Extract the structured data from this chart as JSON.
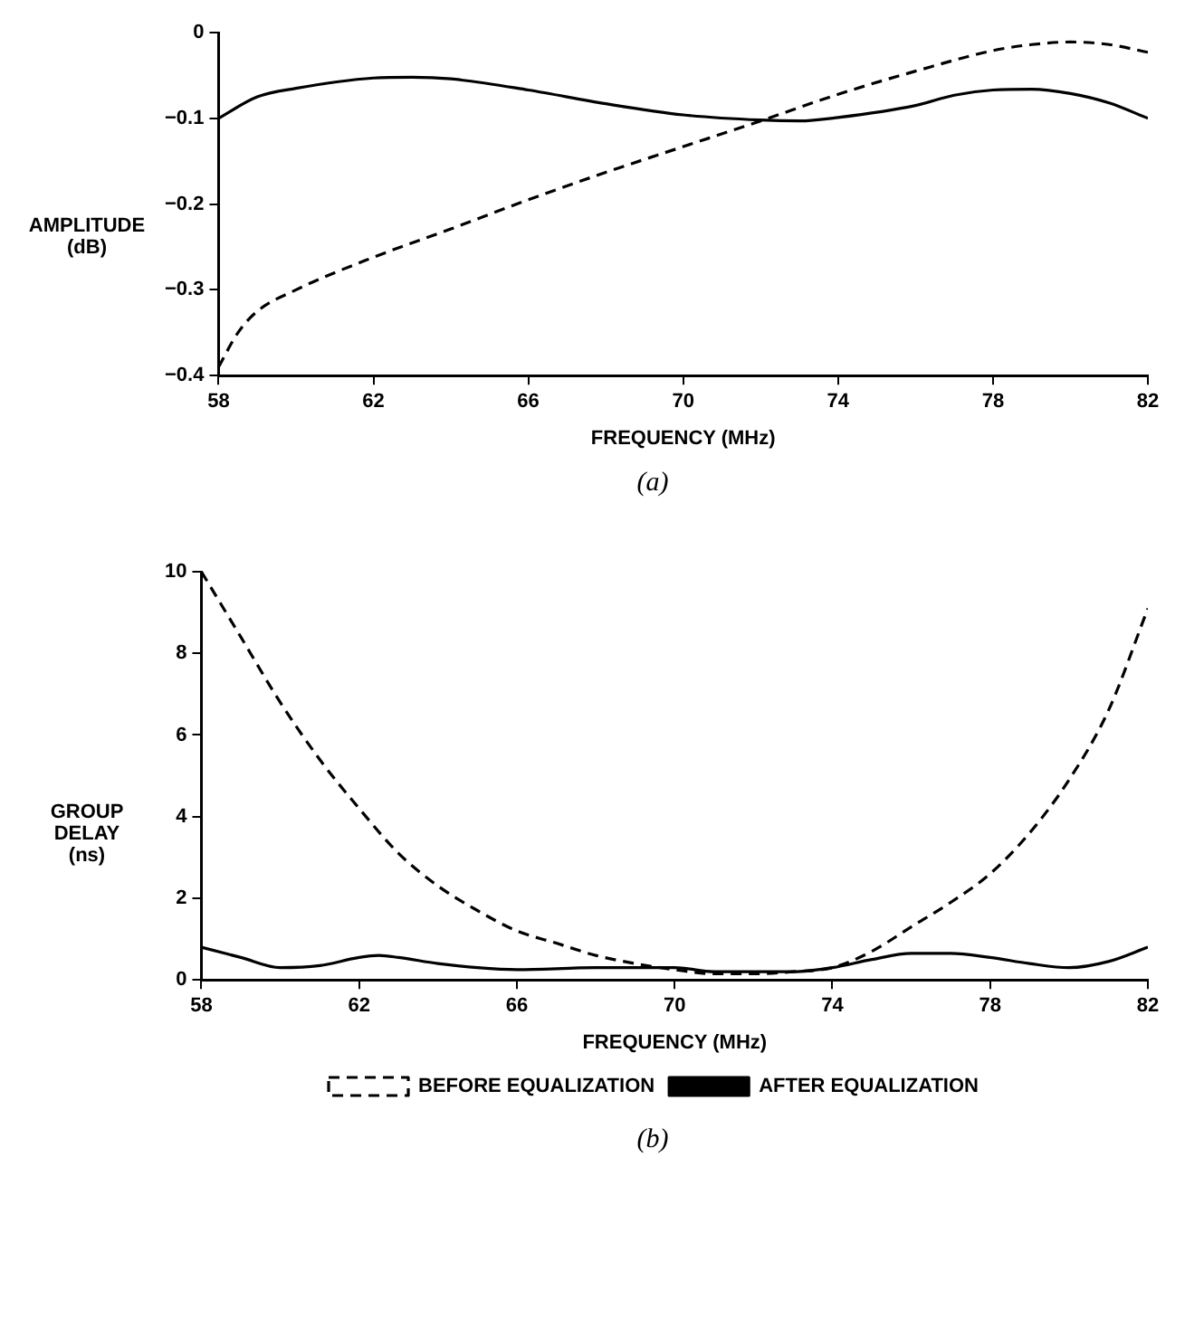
{
  "chart_data": [
    {
      "type": "line",
      "title": "(a)",
      "xlabel": "FREQUENCY (MHz)",
      "ylabel": "AMPLITUDE (dB)",
      "xlim": [
        58,
        82
      ],
      "xticks": [
        58,
        62,
        66,
        70,
        74,
        78,
        82
      ],
      "ylim": [
        -0.4,
        0
      ],
      "yticks": [
        0,
        {
          "value": -0.1,
          "label": "−0.1"
        },
        {
          "value": -0.2,
          "label": "−0.2"
        },
        {
          "value": -0.3,
          "label": "−0.3"
        },
        {
          "value": -0.4,
          "label": "−0.4"
        }
      ],
      "grid": false,
      "legend": false,
      "marker": "none",
      "series": [
        {
          "color": "#000000",
          "line_style": "dashed",
          "x": [
            58,
            58.5,
            59,
            60,
            62,
            64,
            66,
            68,
            70,
            72,
            74,
            76,
            78,
            79,
            80,
            81,
            82
          ],
          "values": [
            -0.39,
            -0.35,
            -0.325,
            -0.3,
            -0.262,
            -0.229,
            -0.195,
            -0.163,
            -0.133,
            -0.103,
            -0.072,
            -0.045,
            -0.021,
            -0.014,
            -0.011,
            -0.014,
            -0.023
          ]
        },
        {
          "color": "#000000",
          "line_style": "solid",
          "x": [
            58,
            59,
            60,
            62,
            63,
            64,
            66,
            68,
            70,
            72,
            73,
            74,
            76,
            77,
            78,
            79,
            80,
            81,
            82
          ],
          "values": [
            -0.1,
            -0.075,
            -0.065,
            -0.053,
            -0.052,
            -0.054,
            -0.067,
            -0.083,
            -0.096,
            -0.102,
            -0.103,
            -0.099,
            -0.085,
            -0.073,
            -0.067,
            -0.066,
            -0.071,
            -0.082,
            -0.1
          ]
        }
      ]
    },
    {
      "type": "line",
      "title": "(b)",
      "xlabel": "FREQUENCY (MHz)",
      "ylabel": "GROUP DELAY (ns)",
      "xlim": [
        58,
        82
      ],
      "xticks": [
        58,
        62,
        66,
        70,
        74,
        78,
        82
      ],
      "ylim": [
        0,
        10
      ],
      "yticks": [
        0,
        2,
        4,
        6,
        8,
        10
      ],
      "grid": false,
      "legend": "bottom",
      "marker": "none",
      "series": [
        {
          "name": "BEFORE EQUALIZATION",
          "color": "#000000",
          "line_style": "dashed",
          "x": [
            58,
            59,
            60,
            61,
            62,
            63,
            64,
            65,
            66,
            67,
            68,
            69,
            70,
            71,
            72,
            73,
            74,
            75,
            76,
            77,
            78,
            79,
            80,
            81,
            82
          ],
          "values": [
            10,
            8.4,
            6.8,
            5.4,
            4.2,
            3.1,
            2.3,
            1.7,
            1.2,
            0.9,
            0.6,
            0.4,
            0.25,
            0.15,
            0.15,
            0.2,
            0.3,
            0.7,
            1.3,
            1.9,
            2.6,
            3.6,
            4.9,
            6.6,
            9.1
          ]
        },
        {
          "name": "AFTER EQUALIZATION",
          "color": "#000000",
          "line_style": "solid",
          "x": [
            58,
            59,
            60,
            61,
            62,
            62.5,
            63,
            64,
            65,
            66,
            68,
            70,
            71,
            72,
            73,
            74,
            75,
            76,
            77,
            78,
            79,
            80,
            81,
            82
          ],
          "values": [
            0.8,
            0.55,
            0.3,
            0.35,
            0.55,
            0.6,
            0.55,
            0.4,
            0.3,
            0.25,
            0.3,
            0.3,
            0.2,
            0.2,
            0.2,
            0.3,
            0.5,
            0.65,
            0.65,
            0.55,
            0.4,
            0.3,
            0.45,
            0.8
          ]
        }
      ]
    }
  ]
}
